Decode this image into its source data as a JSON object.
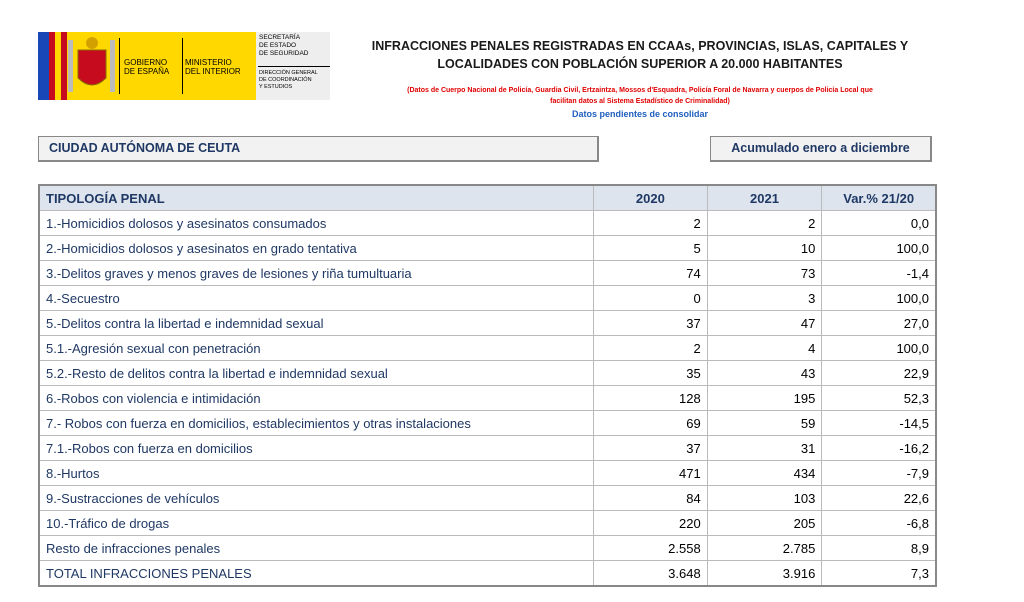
{
  "logo": {
    "government": [
      "GOBIERNO",
      "DE ESPAÑA"
    ],
    "ministry": [
      "MINISTERIO",
      "DEL INTERIOR"
    ],
    "secretariat": [
      "SECRETARÍA",
      "DE ESTADO",
      "DE SEGURIDAD"
    ],
    "directorate": [
      "DIRECCIÓN GENERAL",
      "DE COORDINACIÓN",
      "Y ESTUDIOS"
    ]
  },
  "header": {
    "title": [
      "INFRACCIONES PENALES REGISTRADAS EN CCAAs, PROVINCIAS, ISLAS, CAPITALES Y",
      "LOCALIDADES CON POBLACIÓN SUPERIOR A 20.000 HABITANTES"
    ],
    "source_note": [
      "(Datos de Cuerpo Nacional de Policía, Guardia Civil, Ertzaintza, Mossos d'Esquadra, Policía Foral de Navarra y cuerpos de Policía Local que",
      "facilitan datos al Sistema Estadístico de Criminalidad)"
    ],
    "status": "Datos pendientes de consolidar"
  },
  "region": "CIUDAD AUTÓNOMA DE CEUTA",
  "period": "Acumulado enero a diciembre",
  "table": {
    "columns": [
      "TIPOLOGÍA PENAL",
      "2020",
      "2021",
      "Var.% 21/20"
    ],
    "rows": [
      [
        "1.-Homicidios dolosos y asesinatos consumados",
        "2",
        "2",
        "0,0"
      ],
      [
        "2.-Homicidios dolosos y asesinatos en grado tentativa",
        "5",
        "10",
        "100,0"
      ],
      [
        "3.-Delitos graves y menos graves de lesiones y riña tumultuaria",
        "74",
        "73",
        "-1,4"
      ],
      [
        "4.-Secuestro",
        "0",
        "3",
        "100,0"
      ],
      [
        "5.-Delitos contra la libertad e indemnidad sexual",
        "37",
        "47",
        "27,0"
      ],
      [
        "5.1.-Agresión sexual con penetración",
        "2",
        "4",
        "100,0"
      ],
      [
        "5.2.-Resto de delitos contra la libertad e indemnidad sexual",
        "35",
        "43",
        "22,9"
      ],
      [
        "6.-Robos con violencia e intimidación",
        "128",
        "195",
        "52,3"
      ],
      [
        "7.- Robos con fuerza en domicilios, establecimientos y otras instalaciones",
        "69",
        "59",
        "-14,5"
      ],
      [
        "7.1.-Robos con fuerza en domicilios",
        "37",
        "31",
        "-16,2"
      ],
      [
        "8.-Hurtos",
        "471",
        "434",
        "-7,9"
      ],
      [
        "9.-Sustracciones de vehículos",
        "84",
        "103",
        "22,6"
      ],
      [
        "10.-Tráfico de drogas",
        "220",
        "205",
        "-6,8"
      ],
      [
        "Resto de infracciones penales",
        "2.558",
        "2.785",
        "8,9"
      ],
      [
        "TOTAL INFRACCIONES PENALES",
        "3.648",
        "3.916",
        "7,3"
      ]
    ]
  }
}
